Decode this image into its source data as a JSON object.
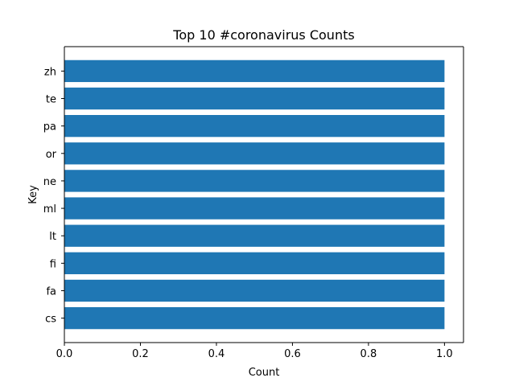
{
  "chart_data": {
    "type": "bar",
    "orientation": "horizontal",
    "title": "Top 10 #coronavirus Counts",
    "xlabel": "Count",
    "ylabel": "Key",
    "categories": [
      "cs",
      "fa",
      "fi",
      "lt",
      "ml",
      "ne",
      "or",
      "pa",
      "te",
      "zh"
    ],
    "values": [
      1,
      1,
      1,
      1,
      1,
      1,
      1,
      1,
      1,
      1
    ],
    "xlim": [
      0,
      1.05
    ],
    "xticks": [
      0.0,
      0.2,
      0.4,
      0.6,
      0.8,
      1.0
    ],
    "xtick_labels": [
      "0.0",
      "0.2",
      "0.4",
      "0.6",
      "0.8",
      "1.0"
    ],
    "grid": false,
    "legend": false,
    "bar_color": "#1f77b4"
  }
}
